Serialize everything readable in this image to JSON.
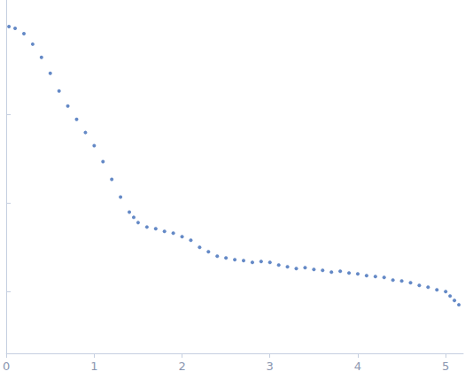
{
  "chart_data": {
    "type": "scatter",
    "color": "#3d6bb8",
    "marker": "circle",
    "grid": false,
    "tick_labels": "x",
    "xlim": [
      0,
      5.2
    ],
    "xticks": [
      0,
      1,
      2,
      3,
      4,
      5
    ],
    "ylim": [
      0.3,
      4.3
    ],
    "yticks": [
      1,
      2,
      3
    ],
    "x": [
      0.03,
      0.1,
      0.2,
      0.3,
      0.4,
      0.5,
      0.6,
      0.7,
      0.8,
      0.9,
      1.0,
      1.1,
      1.2,
      1.3,
      1.4,
      1.45,
      1.5,
      1.6,
      1.7,
      1.8,
      1.9,
      2.0,
      2.1,
      2.2,
      2.3,
      2.4,
      2.5,
      2.6,
      2.7,
      2.8,
      2.9,
      3.0,
      3.1,
      3.2,
      3.3,
      3.4,
      3.5,
      3.6,
      3.7,
      3.8,
      3.9,
      4.0,
      4.1,
      4.2,
      4.3,
      4.4,
      4.5,
      4.6,
      4.7,
      4.8,
      4.9,
      5.0,
      5.05,
      5.1,
      5.15
    ],
    "values": [
      4.0,
      3.98,
      3.92,
      3.8,
      3.65,
      3.47,
      3.27,
      3.1,
      2.95,
      2.8,
      2.65,
      2.47,
      2.27,
      2.07,
      1.9,
      1.84,
      1.78,
      1.73,
      1.71,
      1.68,
      1.66,
      1.62,
      1.58,
      1.5,
      1.45,
      1.4,
      1.38,
      1.36,
      1.35,
      1.33,
      1.34,
      1.33,
      1.3,
      1.28,
      1.26,
      1.27,
      1.25,
      1.24,
      1.22,
      1.23,
      1.21,
      1.2,
      1.18,
      1.17,
      1.16,
      1.13,
      1.12,
      1.1,
      1.07,
      1.05,
      1.02,
      1.0,
      0.95,
      0.9,
      0.85
    ]
  }
}
